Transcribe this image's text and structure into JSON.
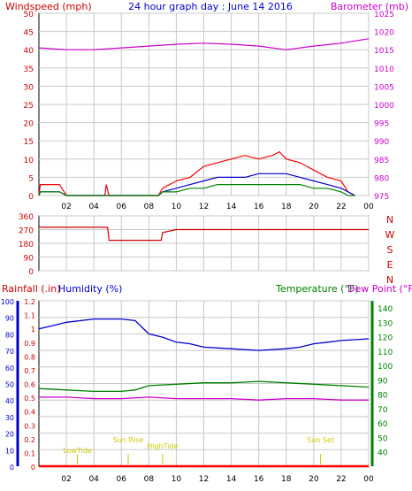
{
  "header": {
    "left_title": "Windspeed (mph)",
    "center_title": "24 hour graph day : June 14 2016",
    "right_title": "Barometer (mb)"
  },
  "panel3_header": {
    "rainfall": "Rainfall (.in)",
    "humidity": "Humidity (%)",
    "temperature": "Temperature (°F)",
    "dewpoint": "Dew Point (°F)"
  },
  "colors": {
    "wind_gust": "#ff0000",
    "wind_avg": "#0000cc",
    "wind_min": "#008000",
    "barometer": "#cc00cc",
    "direction": "#cc0000",
    "temperature": "#008000",
    "humidity": "#0000cc",
    "dewpoint": "#cc00cc",
    "rainfall": "#ff0000",
    "annotations": "#cccc00",
    "grid": "#c8c8c8",
    "frame": "#000000"
  },
  "chart_data": [
    {
      "type": "line",
      "id": "wind_pressure",
      "title": "24 hour graph day : June 14 2016",
      "ylabel": "Windspeed (mph)",
      "y2label": "Barometer (mb)",
      "x_ticks": [
        "02",
        "04",
        "06",
        "08",
        "10",
        "12",
        "14",
        "16",
        "18",
        "20",
        "22",
        "00"
      ],
      "xlim": [
        0,
        24
      ],
      "ylim": [
        0,
        50
      ],
      "y_ticks": [
        0,
        5,
        10,
        15,
        20,
        25,
        30,
        35,
        40,
        45,
        50
      ],
      "y2lim": [
        975,
        1025
      ],
      "y2_ticks": [
        975,
        980,
        985,
        990,
        995,
        1000,
        1005,
        1010,
        1015,
        1020,
        1025
      ],
      "grid": true,
      "series": [
        {
          "name": "Gust",
          "axis": "y",
          "x": [
            0,
            0.1,
            1.5,
            2.0,
            4.8,
            4.9,
            5.1,
            8.7,
            9.0,
            10,
            11,
            12,
            13,
            14,
            15,
            16,
            17,
            17.5,
            18,
            19,
            20,
            21,
            22,
            22.5,
            23.0
          ],
          "values": [
            0,
            3,
            3,
            0,
            0,
            3,
            0,
            0,
            2,
            4,
            5,
            8,
            9,
            10,
            11,
            10,
            11,
            12,
            10,
            9,
            7,
            5,
            4,
            1,
            0
          ]
        },
        {
          "name": "Average",
          "axis": "y",
          "x": [
            0,
            0.1,
            1.5,
            2.0,
            8.7,
            9.0,
            10,
            11,
            12,
            13,
            14,
            15,
            16,
            17,
            18,
            19,
            20,
            21,
            22,
            22.5,
            23.0
          ],
          "values": [
            0,
            1,
            1,
            0,
            0,
            1,
            2,
            3,
            4,
            5,
            5,
            5,
            6,
            6,
            6,
            5,
            4,
            3,
            2,
            1,
            0
          ]
        },
        {
          "name": "Minimum",
          "axis": "y",
          "x": [
            0,
            0.1,
            1.5,
            2.0,
            8.7,
            9.0,
            10,
            11,
            12,
            13,
            14,
            15,
            16,
            17,
            18,
            19,
            20,
            21,
            22,
            22.5,
            23.0
          ],
          "values": [
            0,
            1,
            1,
            0,
            0,
            1,
            1,
            2,
            2,
            3,
            3,
            3,
            3,
            3,
            3,
            3,
            2,
            2,
            1,
            0,
            0
          ]
        },
        {
          "name": "Barometer",
          "axis": "y2",
          "x": [
            0,
            2,
            4,
            6,
            8,
            10,
            12,
            14,
            16,
            18,
            20,
            22,
            24
          ],
          "values": [
            1015.5,
            1015,
            1015,
            1015.5,
            1016,
            1016.5,
            1016.8,
            1016.5,
            1016,
            1015,
            1016,
            1016.8,
            1018
          ]
        }
      ]
    },
    {
      "type": "line",
      "id": "wind_direction",
      "ylabel": "",
      "y_ticks": [
        0,
        90,
        180,
        270,
        360
      ],
      "ylim": [
        0,
        360
      ],
      "xlim": [
        0,
        24
      ],
      "x_ticks": [],
      "right_labels": [
        "N",
        "W",
        "S",
        "E",
        "N"
      ],
      "grid": true,
      "series": [
        {
          "name": "Direction",
          "x": [
            0,
            0.2,
            5.0,
            5.1,
            8.9,
            9.0,
            10,
            12,
            14,
            16,
            18,
            20,
            21,
            22.5,
            24
          ],
          "values": [
            290,
            285,
            285,
            200,
            200,
            250,
            270,
            270,
            270,
            270,
            270,
            270,
            270,
            270,
            270
          ]
        }
      ]
    },
    {
      "type": "line",
      "id": "temp_humidity",
      "ylabel": "Humidity (%)",
      "y2label": "Temperature (°F)",
      "rain_label": "Rainfall (.in)",
      "dew_label": "Dew Point (°F)",
      "x_ticks": [
        "02",
        "04",
        "06",
        "08",
        "10",
        "12",
        "14",
        "16",
        "18",
        "20",
        "22",
        "00"
      ],
      "xlim": [
        0,
        24
      ],
      "ylim": [
        0,
        100
      ],
      "y_ticks": [
        0,
        10,
        20,
        30,
        40,
        50,
        60,
        70,
        80,
        90,
        100
      ],
      "rain_ticks": [
        "0",
        "0.1",
        "0.2",
        "0.3",
        "0.4",
        "0.5",
        "0.6",
        "0.7",
        "0.8",
        "0.9",
        "1",
        "1.1",
        "1.2"
      ],
      "rain_lim": [
        0,
        1.2
      ],
      "y2lim": [
        30,
        145
      ],
      "y2_ticks": [
        40,
        50,
        60,
        70,
        80,
        90,
        100,
        110,
        120,
        130,
        140
      ],
      "grid": true,
      "series": [
        {
          "name": "Humidity",
          "axis": "y",
          "x": [
            0,
            1,
            2,
            4,
            6,
            7,
            8,
            9,
            10,
            11,
            12,
            14,
            16,
            18,
            19,
            20,
            21,
            22,
            24
          ],
          "values": [
            83,
            85,
            87,
            89,
            89,
            88,
            80,
            78,
            75,
            74,
            72,
            71,
            70,
            71,
            72,
            74,
            75,
            76,
            77
          ]
        },
        {
          "name": "Temperature",
          "axis": "y2",
          "x": [
            0,
            2,
            4,
            6,
            7,
            8,
            10,
            12,
            14,
            16,
            18,
            20,
            22,
            24
          ],
          "values": [
            84,
            83,
            82,
            82,
            83,
            86,
            87,
            88,
            88,
            89,
            88,
            87,
            86,
            85
          ]
        },
        {
          "name": "Dew Point",
          "axis": "y2",
          "x": [
            0,
            2,
            4,
            6,
            8,
            10,
            12,
            14,
            16,
            18,
            20,
            22,
            24
          ],
          "values": [
            78,
            78,
            77,
            77,
            78,
            77,
            77,
            77,
            76,
            77,
            77,
            76,
            76
          ]
        },
        {
          "name": "Rainfall",
          "axis": "rain",
          "x": [
            0,
            24
          ],
          "values": [
            0,
            0
          ]
        }
      ],
      "annotations": [
        {
          "label": "LowTide",
          "x": 2.8
        },
        {
          "label": "Sun Rise",
          "x": 6.5
        },
        {
          "label": "HighTide",
          "x": 9.0
        },
        {
          "label": "Sun Set",
          "x": 20.5
        }
      ]
    }
  ]
}
